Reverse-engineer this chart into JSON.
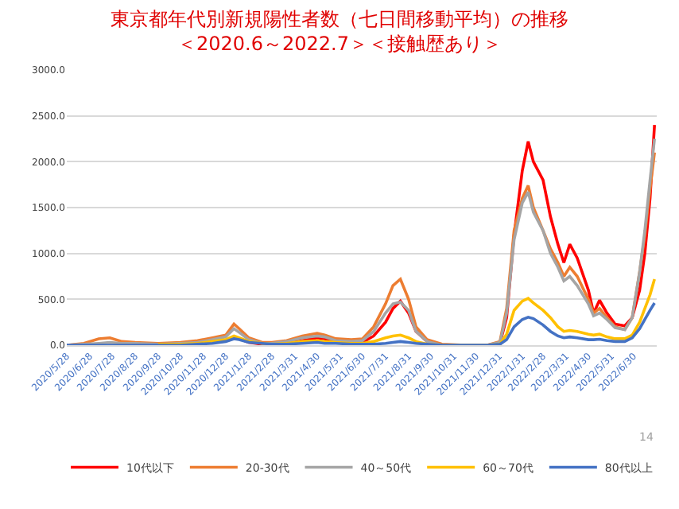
{
  "chart_data": {
    "type": "line",
    "title": "東京都年代別新規陽性者数（七日間移動平均）の推移",
    "subtitle": "＜2020.6～2022.7＞＜接触歴あり＞",
    "x": [
      "2020-05-28",
      "2020-06-20",
      "2020-07-10",
      "2020-07-25",
      "2020-08-10",
      "2020-08-28",
      "2020-09-28",
      "2020-10-28",
      "2020-11-20",
      "2020-12-10",
      "2020-12-28",
      "2021-01-08",
      "2021-01-15",
      "2021-01-28",
      "2021-02-15",
      "2021-02-28",
      "2021-03-20",
      "2021-04-10",
      "2021-04-30",
      "2021-05-10",
      "2021-05-25",
      "2021-06-15",
      "2021-06-30",
      "2021-07-15",
      "2021-07-31",
      "2021-08-10",
      "2021-08-20",
      "2021-08-31",
      "2021-09-10",
      "2021-09-25",
      "2021-10-15",
      "2021-11-15",
      "2021-12-15",
      "2022-01-01",
      "2022-01-10",
      "2022-01-20",
      "2022-01-31",
      "2022-02-08",
      "2022-02-15",
      "2022-02-28",
      "2022-03-10",
      "2022-03-20",
      "2022-03-28",
      "2022-04-05",
      "2022-04-15",
      "2022-04-30",
      "2022-05-07",
      "2022-05-15",
      "2022-05-25",
      "2022-06-05",
      "2022-06-18",
      "2022-06-28",
      "2022-07-08",
      "2022-07-15",
      "2022-07-22",
      "2022-07-28"
    ],
    "series": [
      {
        "name": "10代以下",
        "color": "#ff0000",
        "values": [
          null,
          null,
          null,
          null,
          null,
          null,
          10,
          10,
          20,
          30,
          50,
          90,
          70,
          30,
          10,
          10,
          20,
          50,
          80,
          70,
          40,
          20,
          30,
          100,
          250,
          400,
          480,
          350,
          150,
          40,
          0,
          0,
          0,
          20,
          300,
          1200,
          1900,
          2220,
          2000,
          1800,
          1400,
          1100,
          900,
          1100,
          950,
          600,
          350,
          490,
          350,
          230,
          210,
          300,
          600,
          1000,
          1600,
          2400
        ]
      },
      {
        "name": "20-30代",
        "color": "#ed7d31",
        "values": [
          0,
          20,
          70,
          80,
          40,
          30,
          20,
          30,
          50,
          80,
          110,
          230,
          180,
          80,
          30,
          30,
          50,
          100,
          130,
          110,
          70,
          60,
          70,
          200,
          450,
          650,
          720,
          500,
          200,
          60,
          10,
          0,
          0,
          40,
          400,
          1250,
          1600,
          1740,
          1500,
          1250,
          1050,
          900,
          750,
          850,
          750,
          500,
          350,
          400,
          300,
          200,
          170,
          300,
          800,
          1200,
          1700,
          2100
        ]
      },
      {
        "name": "40～50代",
        "color": "#a5a5a5",
        "values": [
          0,
          10,
          20,
          30,
          20,
          20,
          10,
          20,
          30,
          60,
          90,
          180,
          140,
          60,
          20,
          20,
          40,
          80,
          100,
          90,
          50,
          40,
          50,
          150,
          350,
          450,
          470,
          380,
          150,
          40,
          0,
          0,
          0,
          30,
          350,
          1150,
          1550,
          1670,
          1450,
          1250,
          1000,
          850,
          700,
          750,
          650,
          450,
          320,
          350,
          280,
          190,
          170,
          300,
          800,
          1250,
          1800,
          2250
        ]
      },
      {
        "name": "60～70代",
        "color": "#ffc000",
        "values": [
          null,
          null,
          null,
          null,
          null,
          null,
          10,
          10,
          20,
          40,
          60,
          100,
          80,
          40,
          20,
          10,
          20,
          40,
          50,
          40,
          30,
          20,
          20,
          40,
          80,
          100,
          110,
          80,
          40,
          10,
          0,
          0,
          0,
          10,
          120,
          380,
          480,
          510,
          460,
          380,
          300,
          200,
          150,
          160,
          150,
          120,
          110,
          120,
          90,
          70,
          70,
          110,
          250,
          400,
          550,
          720
        ]
      },
      {
        "name": "80代以上",
        "color": "#4472c4",
        "values": [
          0,
          0,
          0,
          0,
          0,
          0,
          0,
          0,
          10,
          20,
          40,
          70,
          60,
          30,
          20,
          10,
          10,
          20,
          30,
          20,
          20,
          10,
          10,
          10,
          20,
          30,
          40,
          30,
          20,
          10,
          0,
          0,
          0,
          10,
          60,
          200,
          280,
          305,
          290,
          220,
          150,
          100,
          80,
          90,
          80,
          60,
          60,
          65,
          50,
          40,
          40,
          80,
          180,
          280,
          380,
          460
        ]
      }
    ],
    "xlim": [
      "2020-05-28",
      "2022-07-31"
    ],
    "xticks": [
      {
        "value": "2020-05-28",
        "label": "2020/5/28"
      },
      {
        "value": "2020-06-28",
        "label": "2020/6/28"
      },
      {
        "value": "2020-07-28",
        "label": "2020/7/28"
      },
      {
        "value": "2020-08-28",
        "label": "2020/8/28"
      },
      {
        "value": "2020-09-28",
        "label": "2020/9/28"
      },
      {
        "value": "2020-10-28",
        "label": "2020/10/28"
      },
      {
        "value": "2020-11-28",
        "label": "2020/11/28"
      },
      {
        "value": "2020-12-28",
        "label": "2020/12/28"
      },
      {
        "value": "2021-01-28",
        "label": "2021/1/28"
      },
      {
        "value": "2021-02-28",
        "label": "2021/2/28"
      },
      {
        "value": "2021-03-31",
        "label": "2021/3/31"
      },
      {
        "value": "2021-04-30",
        "label": "2021/4/30"
      },
      {
        "value": "2021-05-31",
        "label": "2021/5/31"
      },
      {
        "value": "2021-06-30",
        "label": "2021/6/30"
      },
      {
        "value": "2021-07-31",
        "label": "2021/7/31"
      },
      {
        "value": "2021-08-31",
        "label": "2021/8/31"
      },
      {
        "value": "2021-09-30",
        "label": "2021/9/30"
      },
      {
        "value": "2021-10-31",
        "label": "2021/10/31"
      },
      {
        "value": "2021-11-30",
        "label": "2021/11/30"
      },
      {
        "value": "2021-12-31",
        "label": "2021/12/31"
      },
      {
        "value": "2022-01-31",
        "label": "2022/1/31"
      },
      {
        "value": "2022-02-28",
        "label": "2022/2/28"
      },
      {
        "value": "2022-03-31",
        "label": "2022/3/31"
      },
      {
        "value": "2022-04-30",
        "label": "2022/4/30"
      },
      {
        "value": "2022-05-31",
        "label": "2022/5/31"
      },
      {
        "value": "2022-06-30",
        "label": "2022/6/30"
      }
    ],
    "ylim": [
      0,
      3000
    ],
    "yticks": [
      {
        "value": 0,
        "label": "0.0"
      },
      {
        "value": 500,
        "label": "500.0"
      },
      {
        "value": 1000,
        "label": "1000.0"
      },
      {
        "value": 1500,
        "label": "1500.0"
      },
      {
        "value": 2000,
        "label": "2000.0"
      },
      {
        "value": 2500,
        "label": "2500.0"
      },
      {
        "value": 3000,
        "label": "3000.0"
      }
    ],
    "grid": "y",
    "legend": "bottom",
    "marker": "none",
    "line_style": "solid",
    "annotations": [
      "14"
    ]
  }
}
